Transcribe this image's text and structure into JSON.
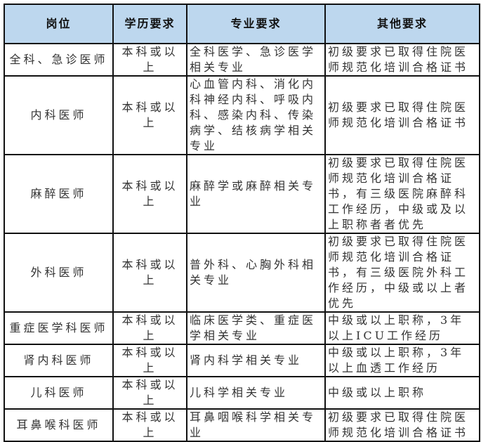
{
  "header": {
    "position": "岗位",
    "education": "学历要求",
    "major": "专业要求",
    "other": "其他要求"
  },
  "header_color": "#bdd7ee",
  "rows": [
    {
      "position": "全科、急诊医师",
      "education": "本科或以上",
      "major": "全科医学、急诊医学相关专业",
      "other": "初级要求已取得住院医师规范化培训合格证书"
    },
    {
      "position": "内科医师",
      "education": "本科或以上",
      "major": "心血管内科、消化内科神经内科、呼吸内科、感染内科、传染病学、结核病学相关专业",
      "other": "初级要求已取得住院医师规范化培训合格证书"
    },
    {
      "position": "麻醉医师",
      "education": "本科或以上",
      "major": "麻醉学或麻醉相关专业",
      "other": "初级要求已取得住院医师规范化培训合格证书，有三级医院麻醉科工作经历，中级或及以上职称者者优先"
    },
    {
      "position": "外科医师",
      "education": "本科或以上",
      "major": "普外科、心胸外科相关专业",
      "other": "初级要求已取得住院医师规范化培训合格证书，有三级医院外科工作经历，中级或以上者优先"
    },
    {
      "position": "重症医学科医师",
      "education": "本科或以上",
      "major": "临床医学类、重症医学相关专业",
      "other": "中级或以上职称，3年以上ICU工作经历"
    },
    {
      "position": "肾内科医师",
      "education": "本科或以上",
      "major": "肾内科学相关专业",
      "other": "中级或以上职称，3年以上血透工作经历"
    },
    {
      "position": "儿科医师",
      "education": "本科或以上",
      "major": "儿科学相关专业",
      "other": "中级或以上职称"
    },
    {
      "position": "耳鼻喉科医师",
      "education": "本科或以上",
      "major": "耳鼻咽喉科学相关专业",
      "other": "初级要求已取得住院医师规范化培训合格证书"
    }
  ]
}
